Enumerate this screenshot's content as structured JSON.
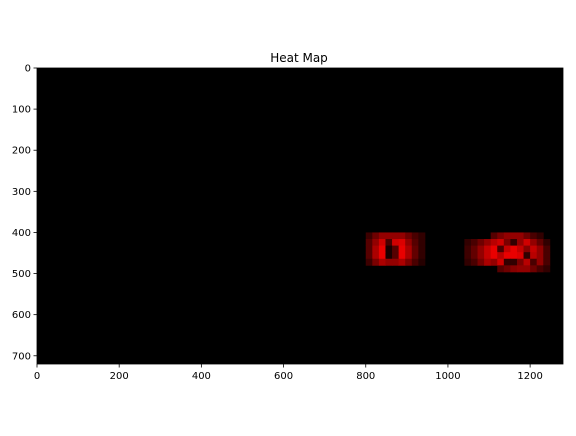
{
  "chart_data": {
    "type": "heatmap",
    "title": "Heat Map",
    "xlabel": "",
    "ylabel": "",
    "xlim": [
      0,
      1280
    ],
    "ylim": [
      720,
      0
    ],
    "x_ticks": [
      0,
      200,
      400,
      600,
      800,
      1000,
      1200
    ],
    "y_ticks": [
      0,
      100,
      200,
      300,
      400,
      500,
      600,
      700
    ],
    "grid": false,
    "background_color": "#000000",
    "colormap": "hot",
    "cell_size": 16,
    "hot_regions": [
      {
        "x_start": 800,
        "y_start": 400,
        "intensity": [
          [
            0.25,
            0.45,
            0.6,
            0.6,
            0.6,
            0.6,
            0.45,
            0.3,
            0.2
          ],
          [
            0.35,
            0.6,
            0.85,
            0.3,
            0.85,
            0.9,
            0.6,
            0.35,
            0.2
          ],
          [
            0.35,
            0.7,
            0.95,
            0.1,
            0.35,
            0.95,
            0.7,
            0.4,
            0.2
          ],
          [
            0.35,
            0.7,
            0.95,
            0.1,
            0.35,
            0.95,
            0.7,
            0.4,
            0.2
          ],
          [
            0.25,
            0.5,
            0.7,
            0.6,
            0.6,
            0.7,
            0.5,
            0.3,
            0.15
          ]
        ]
      },
      {
        "x_start": 1040,
        "y_start": 400,
        "intensity": [
          [
            0,
            0,
            0,
            0,
            0.35,
            0.5,
            0.6,
            0.6,
            0.6,
            0.45,
            0.3,
            0.2,
            0
          ],
          [
            0.2,
            0.3,
            0.45,
            0.6,
            0.75,
            0.85,
            0.5,
            0.2,
            0.6,
            0.85,
            0.6,
            0.4,
            0.2
          ],
          [
            0.25,
            0.4,
            0.6,
            0.8,
            0.95,
            0.3,
            0.8,
            0.95,
            0.8,
            0.55,
            0.8,
            0.6,
            0.3
          ],
          [
            0.25,
            0.4,
            0.6,
            0.8,
            0.95,
            0.75,
            0.95,
            0.95,
            0.9,
            0.2,
            0.75,
            0.6,
            0.3
          ],
          [
            0.2,
            0.3,
            0.5,
            0.7,
            0.6,
            0.85,
            0.2,
            0.2,
            0.5,
            0.75,
            0.3,
            0.6,
            0.3
          ],
          [
            0,
            0,
            0,
            0,
            0,
            0.35,
            0.45,
            0.55,
            0.6,
            0.6,
            0.45,
            0.3,
            0.2
          ]
        ]
      }
    ]
  }
}
